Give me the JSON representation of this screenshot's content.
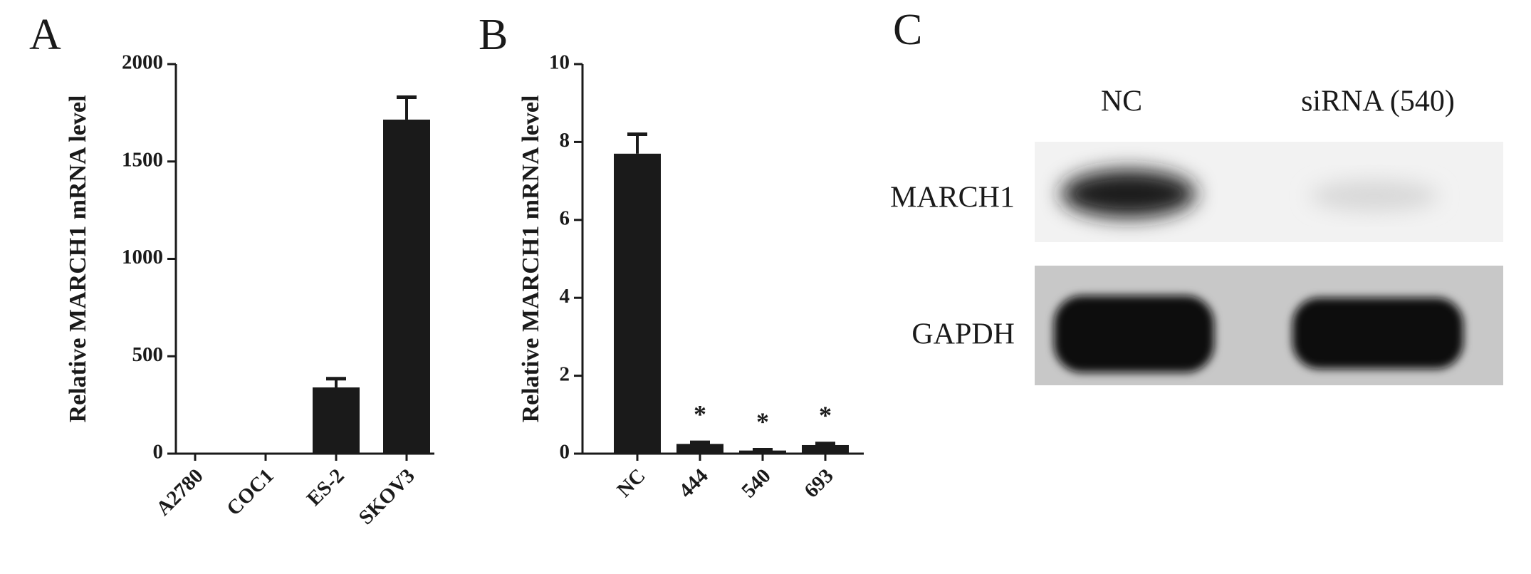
{
  "chart_data": [
    {
      "type": "bar",
      "panel_label": "A",
      "y_label": "Relative MARCH1 mRNA level",
      "categories": [
        "A2780",
        "COC1",
        "ES-2",
        "SKOV3"
      ],
      "values": [
        2,
        2,
        340,
        1715
      ],
      "errors": [
        0,
        0,
        45,
        115
      ],
      "color": "#1a1a1a",
      "ylim": [
        0,
        2000
      ],
      "yticks": [
        0,
        500,
        1000,
        1500,
        2000
      ]
    },
    {
      "type": "bar",
      "panel_label": "B",
      "y_label": "Relative MARCH1 mRNA level",
      "categories": [
        "NC",
        "444",
        "540",
        "693"
      ],
      "values": [
        7.7,
        0.25,
        0.08,
        0.22
      ],
      "errors": [
        0.5,
        0.04,
        0.02,
        0.04
      ],
      "annotations": [
        null,
        "*",
        "*",
        "*"
      ],
      "color": "#1a1a1a",
      "ylim": [
        0,
        10
      ],
      "yticks": [
        0,
        2,
        4,
        6,
        8,
        10
      ]
    }
  ],
  "blot": {
    "panel_label": "C",
    "lanes": [
      "NC",
      "siRNA (540)"
    ],
    "rows": [
      "MARCH1",
      "GAPDH"
    ]
  }
}
